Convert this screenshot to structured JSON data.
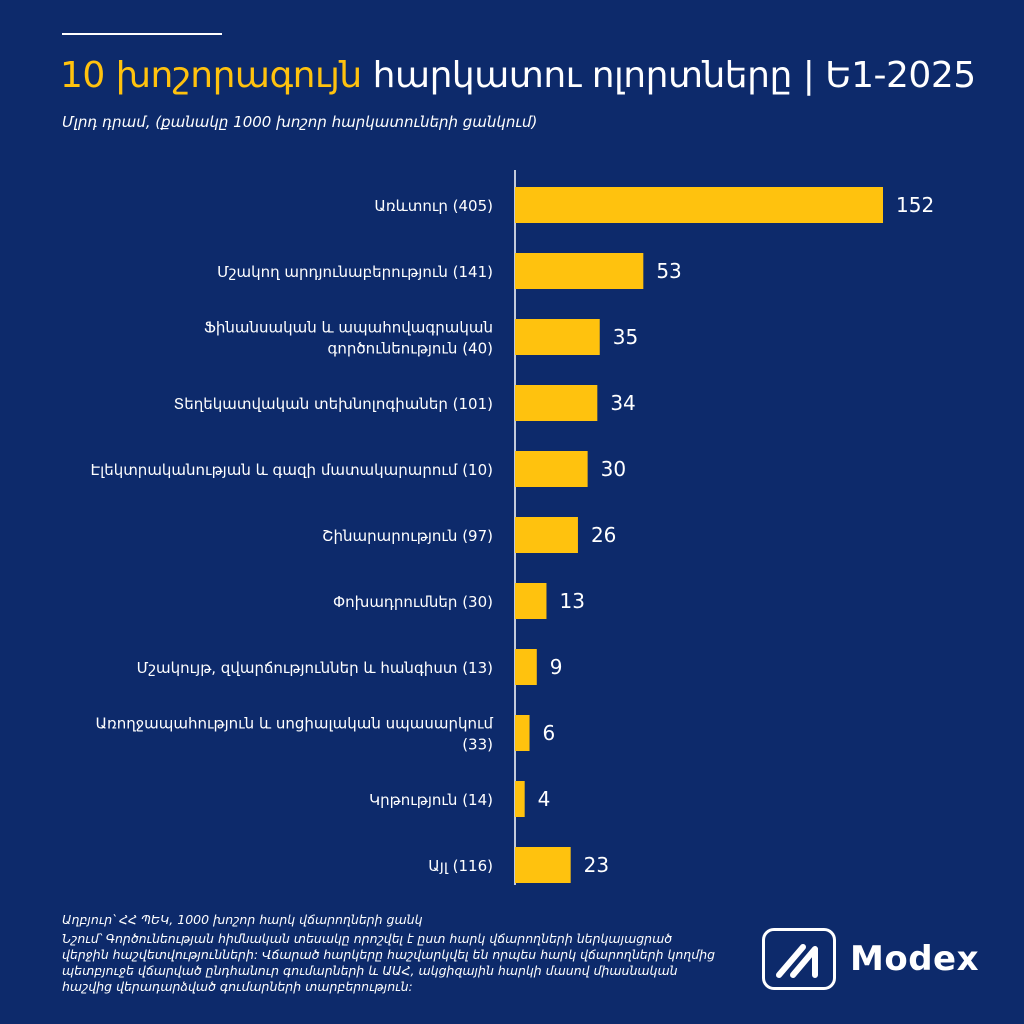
{
  "header": {
    "title_highlight": "10 խոշորագույն",
    "title_rest": " հարկատու ոլորտները | Ե1-2025",
    "subtitle": "Մլրդ դրամ, (քանակը 1000 խոշոր հարկատուների ցանկում)"
  },
  "chart_data": {
    "type": "bar",
    "orientation": "horizontal",
    "categories": [
      [
        "Առևտուր (405)"
      ],
      [
        "Մշակող արդյունաբերություն (141)"
      ],
      [
        "Ֆինանսական և ապահովագրական",
        "գործունեություն (40)"
      ],
      [
        "Տեղեկատվական տեխնոլոգիաներ (101)"
      ],
      [
        "Էլեկտրականության և գազի մատակարարում (10)"
      ],
      [
        "Շինարարություն (97)"
      ],
      [
        "Փոխադրումներ (30)"
      ],
      [
        "Մշակույթ, զվարճություններ և հանգիստ (13)"
      ],
      [
        "Առողջապահություն և  սոցիալական սպասարկում",
        "(33)"
      ],
      [
        "Կրթություն (14)"
      ],
      [
        "Այլ (116)"
      ]
    ],
    "values": [
      152,
      53,
      35,
      34,
      30,
      26,
      13,
      9,
      6,
      4,
      23
    ],
    "value_labels": [
      "152",
      "53",
      "35",
      "34",
      "30",
      "26",
      "13",
      "9",
      "6",
      "4",
      "23"
    ],
    "bar_color": "#ffc20e",
    "axis_color": "#ffffff",
    "xlim": [
      0,
      152
    ]
  },
  "footer": {
    "source": "Աղբյուր՝ ՀՀ ՊԵԿ, 1000 խոշոր հարկ վճարողների ցանկ",
    "note": "Նշում՝ Գործունեության հիմնական տեսակը որոշվել է ըստ հարկ վճարողների ներկայացրած վերջին հաշվետվությունների: Վճարած հարկերը հաշվարկվել են որպես հարկ վճարողների կողմից պետբյուջե վճարված ընդհանուր գումարների և ԱԱՀ, ակցիզային հարկի մասով միասնական հաշվից վերադարձված գումարների տարբերություն:"
  },
  "logo": {
    "text": "Modex",
    "icon": "modex-logo-icon"
  },
  "colors": {
    "background": "#0d2a6b",
    "accent": "#ffc20e",
    "text": "#ffffff"
  }
}
